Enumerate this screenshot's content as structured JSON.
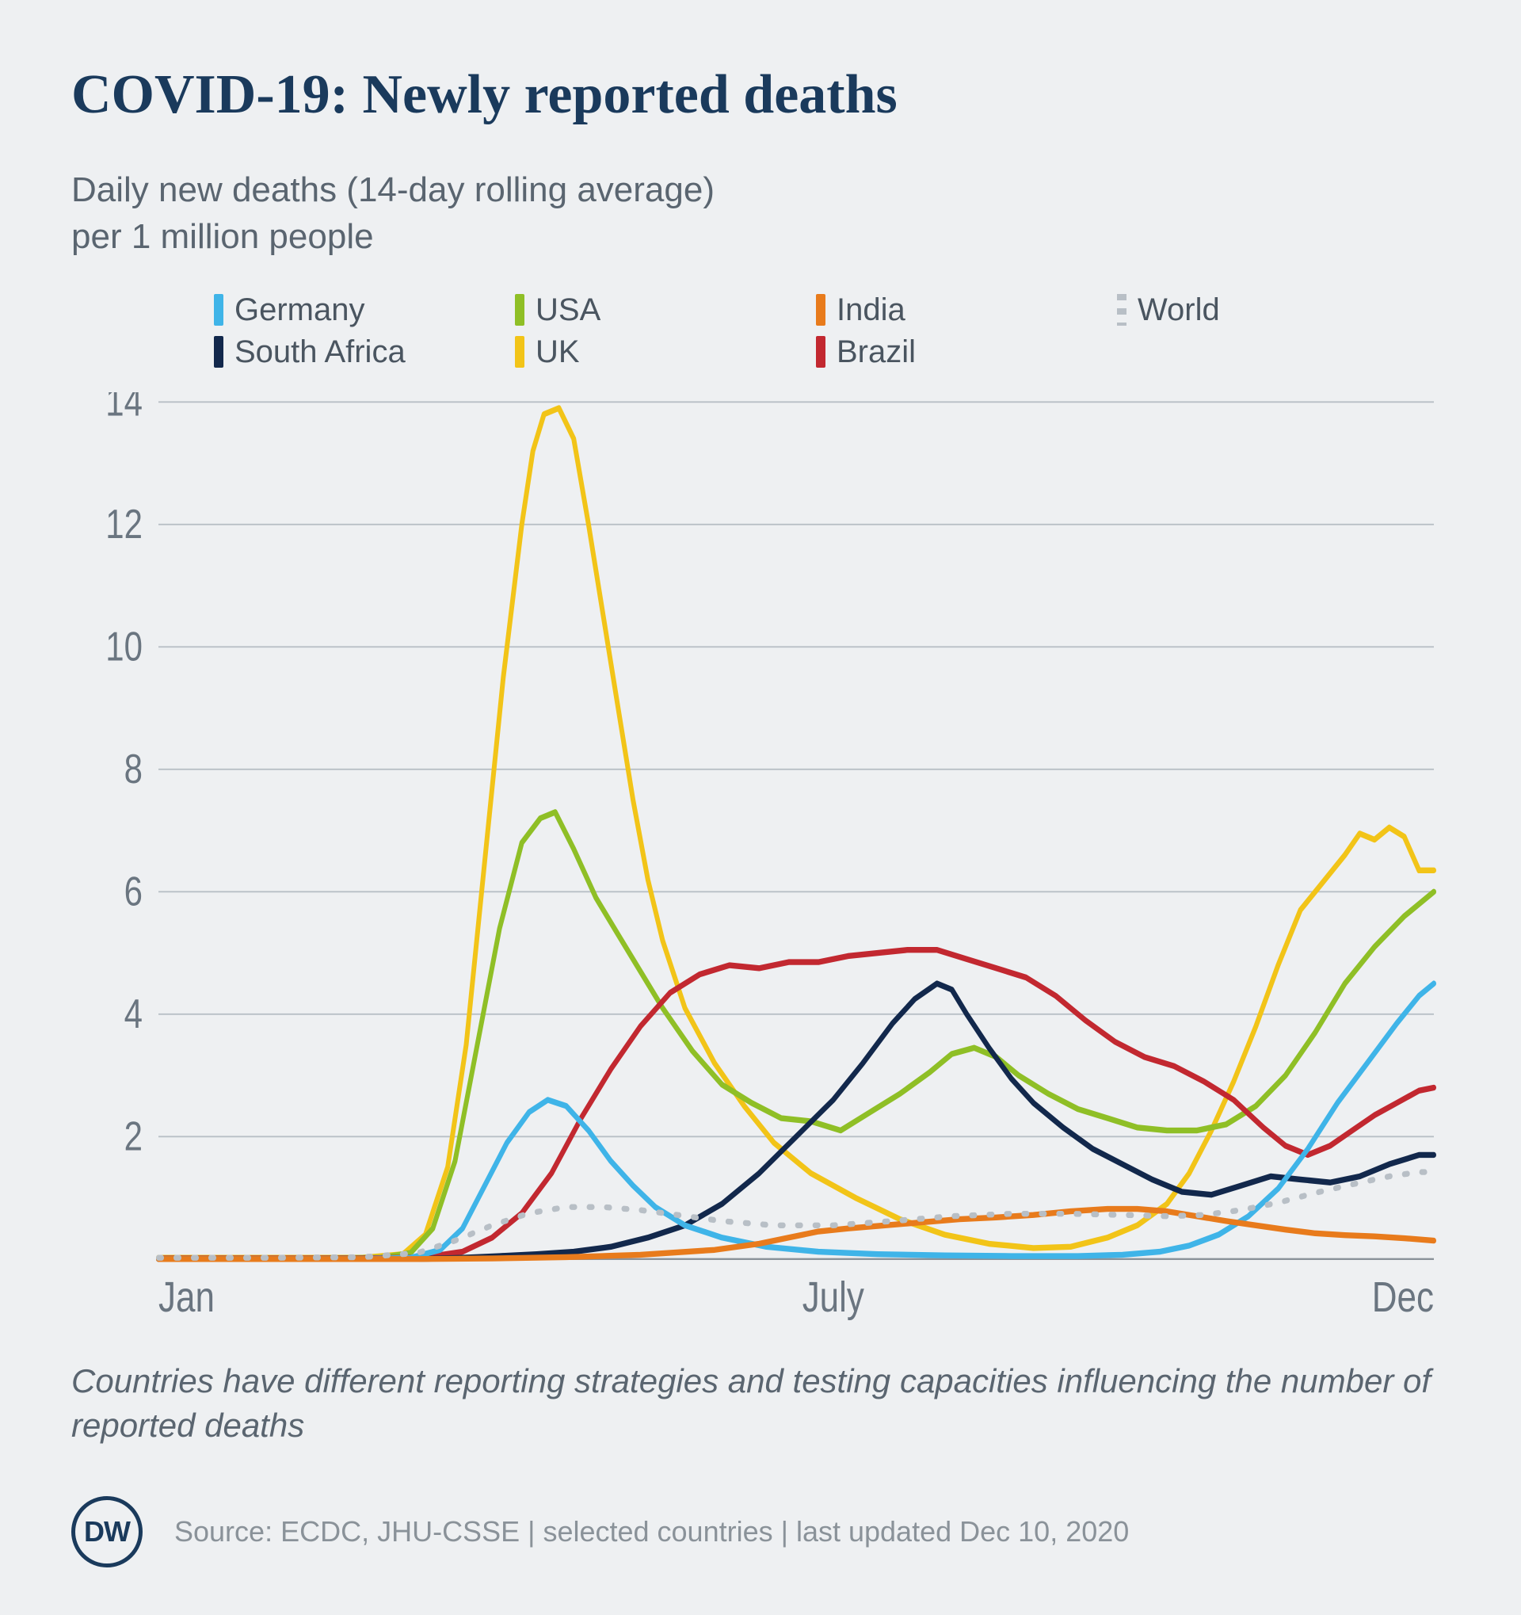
{
  "title": "COVID-19: Newly reported deaths",
  "title_fontsize": 70,
  "title_color": "#1a3a5c",
  "subtitle": "Daily new deaths (14-day rolling average)\nper 1 million people",
  "subtitle_fontsize": 44,
  "subtitle_color": "#5a6570",
  "background_color": "#eef0f2",
  "legend": {
    "fontsize": 40,
    "rows": [
      [
        {
          "label": "Germany",
          "color": "#3fb4e8",
          "style": "solid"
        },
        {
          "label": "USA",
          "color": "#8fbf26",
          "style": "solid"
        },
        {
          "label": "India",
          "color": "#e87b1c",
          "style": "solid"
        },
        {
          "label": "World",
          "color": "#b8bfc6",
          "style": "dotted"
        }
      ],
      [
        {
          "label": "South Africa",
          "color": "#12284c",
          "style": "solid"
        },
        {
          "label": "UK",
          "color": "#f2c418",
          "style": "solid"
        },
        {
          "label": "Brazil",
          "color": "#c22830",
          "style": "solid"
        }
      ]
    ]
  },
  "chart": {
    "type": "line",
    "x_domain": [
      0,
      344
    ],
    "y_domain": [
      0,
      14
    ],
    "yticks": [
      0,
      2,
      4,
      6,
      8,
      10,
      12,
      14
    ],
    "ytick_fontsize": 42,
    "xticks": [
      {
        "x": 0,
        "label": "Jan"
      },
      {
        "x": 182,
        "label": "July"
      },
      {
        "x": 344,
        "label": "Dec"
      }
    ],
    "xtick_fontsize": 44,
    "grid_color": "#b8bfc6",
    "baseline_color": "#8a9299",
    "line_width": 6,
    "series": [
      {
        "name": "UK",
        "color": "#f2c418",
        "style": "solid",
        "points": [
          [
            0,
            0.02
          ],
          [
            25,
            0.02
          ],
          [
            55,
            0.02
          ],
          [
            66,
            0.08
          ],
          [
            72,
            0.4
          ],
          [
            78,
            1.5
          ],
          [
            83,
            3.5
          ],
          [
            88,
            6.5
          ],
          [
            93,
            9.5
          ],
          [
            98,
            12.0
          ],
          [
            101,
            13.2
          ],
          [
            104,
            13.8
          ],
          [
            108,
            13.9
          ],
          [
            112,
            13.4
          ],
          [
            116,
            12.0
          ],
          [
            120,
            10.5
          ],
          [
            124,
            9.0
          ],
          [
            128,
            7.5
          ],
          [
            132,
            6.2
          ],
          [
            136,
            5.2
          ],
          [
            142,
            4.1
          ],
          [
            150,
            3.2
          ],
          [
            158,
            2.5
          ],
          [
            166,
            1.9
          ],
          [
            176,
            1.4
          ],
          [
            188,
            1.0
          ],
          [
            200,
            0.65
          ],
          [
            212,
            0.4
          ],
          [
            224,
            0.25
          ],
          [
            236,
            0.18
          ],
          [
            246,
            0.2
          ],
          [
            256,
            0.35
          ],
          [
            264,
            0.55
          ],
          [
            272,
            0.9
          ],
          [
            278,
            1.4
          ],
          [
            284,
            2.1
          ],
          [
            290,
            2.9
          ],
          [
            296,
            3.8
          ],
          [
            302,
            4.8
          ],
          [
            308,
            5.7
          ],
          [
            314,
            6.15
          ],
          [
            320,
            6.6
          ],
          [
            324,
            6.95
          ],
          [
            328,
            6.85
          ],
          [
            332,
            7.05
          ],
          [
            336,
            6.9
          ],
          [
            340,
            6.35
          ],
          [
            344,
            6.35
          ]
        ]
      },
      {
        "name": "USA",
        "color": "#8fbf26",
        "style": "solid",
        "points": [
          [
            0,
            0.01
          ],
          [
            40,
            0.01
          ],
          [
            60,
            0.02
          ],
          [
            68,
            0.1
          ],
          [
            74,
            0.5
          ],
          [
            80,
            1.6
          ],
          [
            86,
            3.5
          ],
          [
            92,
            5.4
          ],
          [
            98,
            6.8
          ],
          [
            103,
            7.2
          ],
          [
            107,
            7.3
          ],
          [
            112,
            6.7
          ],
          [
            118,
            5.9
          ],
          [
            124,
            5.3
          ],
          [
            130,
            4.7
          ],
          [
            136,
            4.1
          ],
          [
            144,
            3.4
          ],
          [
            152,
            2.85
          ],
          [
            160,
            2.55
          ],
          [
            168,
            2.3
          ],
          [
            176,
            2.25
          ],
          [
            184,
            2.1
          ],
          [
            192,
            2.4
          ],
          [
            200,
            2.7
          ],
          [
            208,
            3.05
          ],
          [
            214,
            3.35
          ],
          [
            220,
            3.45
          ],
          [
            226,
            3.3
          ],
          [
            232,
            3.0
          ],
          [
            240,
            2.7
          ],
          [
            248,
            2.45
          ],
          [
            256,
            2.3
          ],
          [
            264,
            2.15
          ],
          [
            272,
            2.1
          ],
          [
            280,
            2.1
          ],
          [
            288,
            2.2
          ],
          [
            296,
            2.5
          ],
          [
            304,
            3.0
          ],
          [
            312,
            3.7
          ],
          [
            320,
            4.5
          ],
          [
            328,
            5.1
          ],
          [
            336,
            5.6
          ],
          [
            344,
            6.0
          ]
        ]
      },
      {
        "name": "Brazil",
        "color": "#c22830",
        "style": "solid",
        "points": [
          [
            0,
            0.01
          ],
          [
            55,
            0.01
          ],
          [
            72,
            0.03
          ],
          [
            82,
            0.12
          ],
          [
            90,
            0.35
          ],
          [
            98,
            0.75
          ],
          [
            106,
            1.4
          ],
          [
            114,
            2.3
          ],
          [
            122,
            3.1
          ],
          [
            130,
            3.8
          ],
          [
            138,
            4.35
          ],
          [
            146,
            4.65
          ],
          [
            154,
            4.8
          ],
          [
            162,
            4.75
          ],
          [
            170,
            4.85
          ],
          [
            178,
            4.85
          ],
          [
            186,
            4.95
          ],
          [
            194,
            5.0
          ],
          [
            202,
            5.05
          ],
          [
            210,
            5.05
          ],
          [
            218,
            4.9
          ],
          [
            226,
            4.75
          ],
          [
            234,
            4.6
          ],
          [
            242,
            4.3
          ],
          [
            250,
            3.9
          ],
          [
            258,
            3.55
          ],
          [
            266,
            3.3
          ],
          [
            274,
            3.15
          ],
          [
            282,
            2.9
          ],
          [
            290,
            2.6
          ],
          [
            298,
            2.15
          ],
          [
            304,
            1.85
          ],
          [
            310,
            1.7
          ],
          [
            316,
            1.85
          ],
          [
            322,
            2.1
          ],
          [
            328,
            2.35
          ],
          [
            334,
            2.55
          ],
          [
            340,
            2.75
          ],
          [
            344,
            2.8
          ]
        ]
      },
      {
        "name": "South Africa",
        "color": "#12284c",
        "style": "solid",
        "points": [
          [
            0,
            0.0
          ],
          [
            70,
            0.0
          ],
          [
            82,
            0.02
          ],
          [
            92,
            0.05
          ],
          [
            102,
            0.08
          ],
          [
            112,
            0.12
          ],
          [
            122,
            0.2
          ],
          [
            132,
            0.35
          ],
          [
            142,
            0.55
          ],
          [
            152,
            0.9
          ],
          [
            162,
            1.4
          ],
          [
            172,
            2.0
          ],
          [
            182,
            2.6
          ],
          [
            190,
            3.2
          ],
          [
            198,
            3.85
          ],
          [
            204,
            4.25
          ],
          [
            210,
            4.5
          ],
          [
            214,
            4.4
          ],
          [
            218,
            4.0
          ],
          [
            224,
            3.45
          ],
          [
            230,
            2.95
          ],
          [
            236,
            2.55
          ],
          [
            244,
            2.15
          ],
          [
            252,
            1.8
          ],
          [
            260,
            1.55
          ],
          [
            268,
            1.3
          ],
          [
            276,
            1.1
          ],
          [
            284,
            1.05
          ],
          [
            292,
            1.2
          ],
          [
            300,
            1.35
          ],
          [
            308,
            1.3
          ],
          [
            316,
            1.25
          ],
          [
            324,
            1.35
          ],
          [
            332,
            1.55
          ],
          [
            340,
            1.7
          ],
          [
            344,
            1.7
          ]
        ]
      },
      {
        "name": "Germany",
        "color": "#3fb4e8",
        "style": "solid",
        "points": [
          [
            0,
            0.0
          ],
          [
            55,
            0.0
          ],
          [
            68,
            0.02
          ],
          [
            76,
            0.15
          ],
          [
            82,
            0.5
          ],
          [
            88,
            1.2
          ],
          [
            94,
            1.9
          ],
          [
            100,
            2.4
          ],
          [
            105,
            2.6
          ],
          [
            110,
            2.5
          ],
          [
            116,
            2.1
          ],
          [
            122,
            1.6
          ],
          [
            128,
            1.2
          ],
          [
            134,
            0.85
          ],
          [
            142,
            0.55
          ],
          [
            152,
            0.35
          ],
          [
            164,
            0.2
          ],
          [
            178,
            0.12
          ],
          [
            194,
            0.08
          ],
          [
            212,
            0.06
          ],
          [
            230,
            0.05
          ],
          [
            248,
            0.05
          ],
          [
            260,
            0.07
          ],
          [
            270,
            0.12
          ],
          [
            278,
            0.22
          ],
          [
            286,
            0.4
          ],
          [
            294,
            0.7
          ],
          [
            302,
            1.15
          ],
          [
            310,
            1.8
          ],
          [
            318,
            2.55
          ],
          [
            326,
            3.2
          ],
          [
            334,
            3.85
          ],
          [
            340,
            4.3
          ],
          [
            344,
            4.5
          ]
        ]
      },
      {
        "name": "India",
        "color": "#e87b1c",
        "style": "solid",
        "points": [
          [
            0,
            0.0
          ],
          [
            70,
            0.0
          ],
          [
            90,
            0.01
          ],
          [
            110,
            0.03
          ],
          [
            130,
            0.07
          ],
          [
            150,
            0.15
          ],
          [
            162,
            0.25
          ],
          [
            170,
            0.35
          ],
          [
            178,
            0.45
          ],
          [
            186,
            0.5
          ],
          [
            196,
            0.55
          ],
          [
            206,
            0.6
          ],
          [
            216,
            0.65
          ],
          [
            226,
            0.68
          ],
          [
            236,
            0.72
          ],
          [
            246,
            0.78
          ],
          [
            256,
            0.82
          ],
          [
            264,
            0.82
          ],
          [
            272,
            0.78
          ],
          [
            280,
            0.7
          ],
          [
            288,
            0.62
          ],
          [
            296,
            0.55
          ],
          [
            304,
            0.48
          ],
          [
            312,
            0.42
          ],
          [
            320,
            0.39
          ],
          [
            328,
            0.37
          ],
          [
            336,
            0.34
          ],
          [
            344,
            0.3
          ]
        ]
      },
      {
        "name": "World",
        "color": "#b8bfc6",
        "style": "dotted",
        "points": [
          [
            0,
            0.02
          ],
          [
            30,
            0.02
          ],
          [
            55,
            0.03
          ],
          [
            70,
            0.1
          ],
          [
            80,
            0.3
          ],
          [
            90,
            0.55
          ],
          [
            100,
            0.75
          ],
          [
            110,
            0.85
          ],
          [
            120,
            0.85
          ],
          [
            130,
            0.8
          ],
          [
            140,
            0.72
          ],
          [
            152,
            0.62
          ],
          [
            166,
            0.55
          ],
          [
            182,
            0.55
          ],
          [
            198,
            0.62
          ],
          [
            214,
            0.7
          ],
          [
            230,
            0.74
          ],
          [
            246,
            0.74
          ],
          [
            260,
            0.72
          ],
          [
            272,
            0.7
          ],
          [
            282,
            0.72
          ],
          [
            292,
            0.8
          ],
          [
            302,
            0.92
          ],
          [
            312,
            1.08
          ],
          [
            322,
            1.22
          ],
          [
            332,
            1.35
          ],
          [
            340,
            1.42
          ],
          [
            344,
            1.42
          ]
        ]
      }
    ]
  },
  "footnote": "Countries have different reporting strategies and testing capacities influencing the number of reported deaths",
  "footnote_fontsize": 42,
  "logo_text": "DW",
  "source": "Source: ECDC, JHU-CSSE | selected countries | last updated Dec 10, 2020",
  "source_fontsize": 36
}
